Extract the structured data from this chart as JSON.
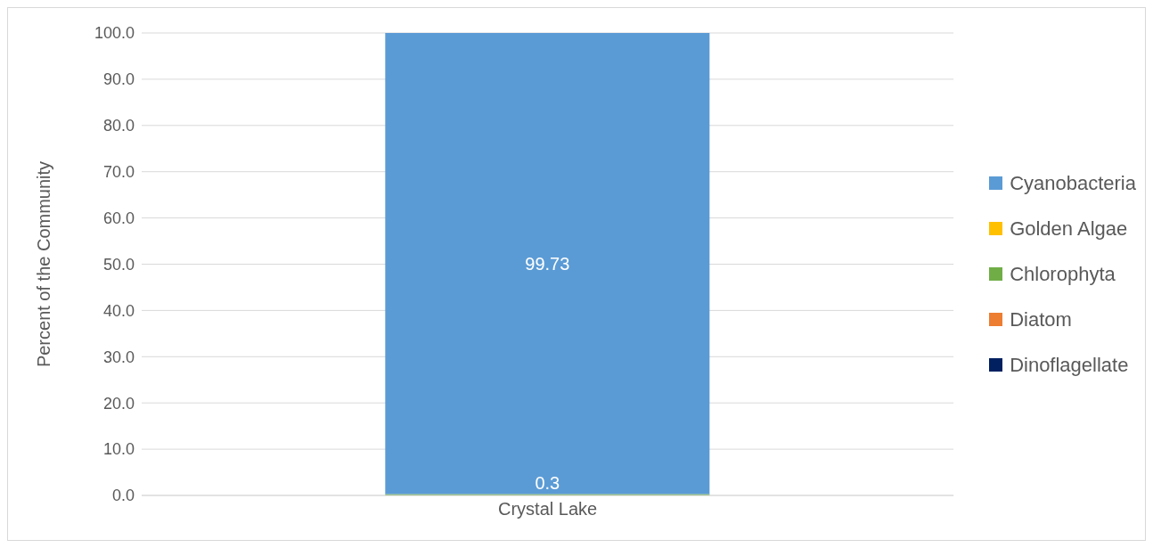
{
  "chart_data": {
    "type": "bar",
    "stacked": true,
    "categories": [
      "Crystal Lake"
    ],
    "ylabel": "Percent of the Community",
    "ylim": [
      0,
      100
    ],
    "yticks": [
      {
        "value": 0,
        "label": "0.0"
      },
      {
        "value": 10,
        "label": "10.0"
      },
      {
        "value": 20,
        "label": "20.0"
      },
      {
        "value": 30,
        "label": "30.0"
      },
      {
        "value": 40,
        "label": "40.0"
      },
      {
        "value": 50,
        "label": "50.0"
      },
      {
        "value": 60,
        "label": "60.0"
      },
      {
        "value": 70,
        "label": "70.0"
      },
      {
        "value": 80,
        "label": "80.0"
      },
      {
        "value": 90,
        "label": "90.0"
      },
      {
        "value": 100,
        "label": "100.0"
      }
    ],
    "grid": "y",
    "legend": "right",
    "series": [
      {
        "name": "Dinoflagellate",
        "color": "#002060",
        "values": [
          0
        ],
        "value_labels": [
          null
        ]
      },
      {
        "name": "Diatom",
        "color": "#ed7d31",
        "values": [
          0
        ],
        "value_labels": [
          null
        ]
      },
      {
        "name": "Chlorophyta",
        "color": "#70ad47",
        "values": [
          0.3
        ],
        "value_labels": [
          "0.3"
        ]
      },
      {
        "name": "Golden Algae",
        "color": "#ffc000",
        "values": [
          0
        ],
        "value_labels": [
          null
        ]
      },
      {
        "name": "Cyanobacteria",
        "color": "#5b9bd5",
        "values": [
          99.73
        ],
        "value_labels": [
          "99.73"
        ]
      }
    ]
  }
}
